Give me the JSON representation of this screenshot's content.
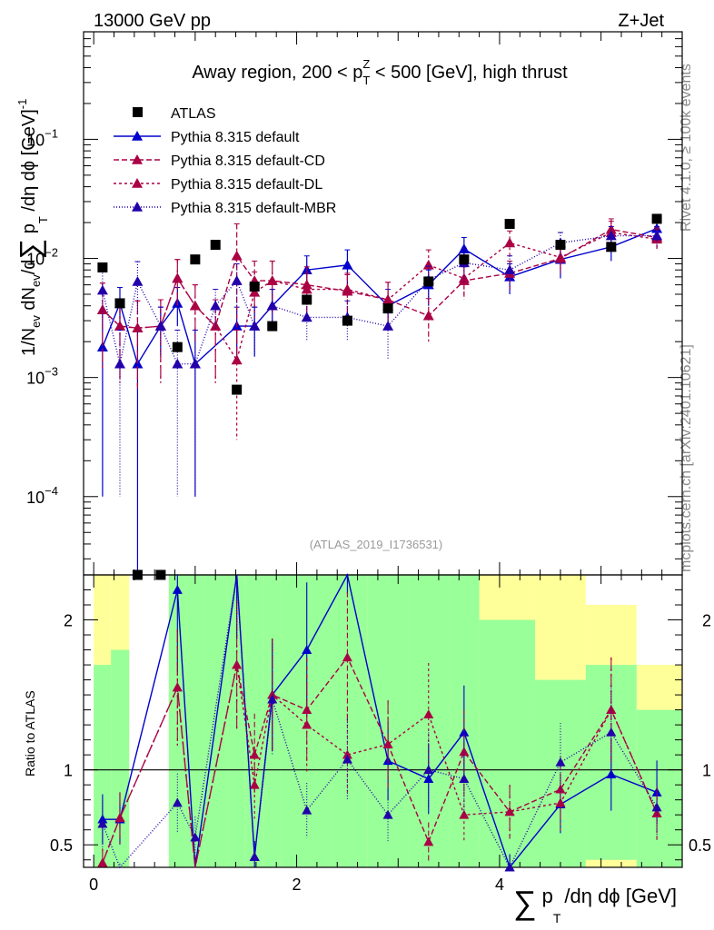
{
  "header": {
    "left": "13000 GeV pp",
    "right": "Z+Jet"
  },
  "side_labels": {
    "rivet": "Rivet 4.1.0, ≥ 100k events",
    "mcplots": "mcplots.cern.ch [arXiv:2401.10621]"
  },
  "chart_data": {
    "type": "scatter",
    "title": "Away region, 200 < p_T^Z < 500 [GeV], high thrust",
    "title_parts": {
      "pre": "Away region, 200 < p",
      "sub": "T",
      "sup": "Z",
      "post": " < 500 [GeV], high thrust"
    },
    "xlabel": "∑ p_T/dη dϕ [GeV]",
    "xlabel_parts": {
      "sum": "∑",
      "p": "p",
      "sub": "T",
      "rest": "/dη dϕ [GeV]"
    },
    "ylabel": "1/N_ev dN_ev/d∑ p_T/dη dϕ [GeV]^-1",
    "ylabel_parts": {
      "a": "1/N",
      "a_sub": "ev",
      "b": " dN",
      "b_sub": "ev",
      "c": "/d",
      "sum": "∑",
      "d": " p",
      "d_sub": "T",
      "e": " /dη dϕ  [GeV]",
      "e_sup": "-1"
    },
    "ratio_ylabel": "Ratio to ATLAS",
    "watermark": "(ATLAS_2019_I1736531)",
    "xlim": [
      -0.1,
      5.8
    ],
    "ylim_main": [
      2.2e-05,
      0.8
    ],
    "ylim_ratio": [
      0.35,
      2.3
    ],
    "x_ticks": [
      0,
      2,
      4
    ],
    "y_ticks_main": [
      {
        "v": 0.1,
        "base": "10",
        "exp": "−1"
      },
      {
        "v": 0.01,
        "base": "10",
        "exp": "−2"
      },
      {
        "v": 0.001,
        "base": "10",
        "exp": "−3"
      },
      {
        "v": 0.0001,
        "base": "10",
        "exp": "−4"
      }
    ],
    "y_ticks_ratio": [
      {
        "v": 0.5,
        "label": "0.5"
      },
      {
        "v": 1,
        "label": "1"
      },
      {
        "v": 2,
        "label": "2"
      }
    ],
    "x": [
      0.087,
      0.258,
      0.432,
      0.66,
      0.825,
      1.0,
      1.2,
      1.41,
      1.585,
      1.76,
      2.1,
      2.5,
      2.9,
      3.3,
      3.65,
      4.1,
      4.6,
      5.1,
      5.55
    ],
    "atlas": {
      "name": "ATLAS",
      "values": [
        0.0084,
        0.0042,
        1.8e-05,
        1.8e-05,
        0.0018,
        0.0098,
        0.013,
        0.00079,
        0.0058,
        0.0027,
        0.0045,
        0.003,
        0.0038,
        0.0064,
        0.0098,
        0.0195,
        0.013,
        0.0125,
        0.0215
      ]
    },
    "series": [
      {
        "name": "Pythia 8.315 default",
        "color": "#0000cc",
        "dash": "",
        "values": [
          0.0018,
          0.0042,
          0.0013,
          0.0027,
          0.0042,
          0.0013,
          null,
          0.0027,
          0.0027,
          0.004,
          0.008,
          0.0088,
          0.004,
          0.006,
          0.012,
          0.007,
          0.0098,
          0.0125,
          0.0178
        ],
        "errors": [
          0.0017,
          0.0015,
          0.0013,
          0.0012,
          0.0015,
          0.0012,
          null,
          0.0012,
          0.0012,
          0.0015,
          0.0025,
          0.003,
          0.0015,
          0.002,
          0.003,
          0.002,
          0.003,
          0.003,
          0.003
        ]
      },
      {
        "name": "Pythia 8.315 default-CD",
        "color": "#aa0044",
        "dash": "6,3",
        "values": [
          0.0037,
          0.0027,
          0.0026,
          0.0027,
          0.0068,
          0.004,
          0.0027,
          0.0105,
          0.0065,
          0.0065,
          0.006,
          0.0053,
          0.0045,
          0.0033,
          0.0065,
          0.0075,
          0.01,
          0.0175,
          0.015
        ],
        "errors": [
          0.0025,
          0.0018,
          0.0018,
          0.0018,
          0.003,
          0.002,
          0.0018,
          0.009,
          0.003,
          0.003,
          0.0025,
          0.002,
          0.0018,
          0.0013,
          0.002,
          0.002,
          0.0025,
          0.004,
          0.003
        ]
      },
      {
        "name": "Pythia 8.315 default-DL",
        "color": "#aa0044",
        "dash": "3,3",
        "values": [
          0.0037,
          0.0027,
          0.0026,
          0.0027,
          0.0068,
          0.004,
          0.0027,
          0.0014,
          0.0052,
          0.0065,
          0.0055,
          0.0055,
          0.0045,
          0.0088,
          0.0068,
          0.0135,
          0.0102,
          0.0165,
          0.0145
        ],
        "errors": [
          0.0025,
          0.0018,
          0.0018,
          0.0018,
          0.003,
          0.002,
          0.0018,
          0.0011,
          0.0025,
          0.003,
          0.002,
          0.002,
          0.0018,
          0.003,
          0.002,
          0.0035,
          0.0025,
          0.004,
          0.003
        ]
      },
      {
        "name": "Pythia 8.315 default-MBR",
        "color": "#2200aa",
        "dash": "1,2",
        "values": [
          0.0054,
          0.0013,
          0.0064,
          0.0027,
          0.0013,
          0.0013,
          0.004,
          0.0065,
          0.0027,
          0.004,
          0.0032,
          0.0032,
          0.0027,
          0.0066,
          0.0092,
          0.008,
          0.0135,
          0.0155,
          0.0155
        ],
        "errors": [
          0.003,
          0.0012,
          0.003,
          0.0012,
          0.0012,
          0.0012,
          0.0015,
          0.0025,
          0.0012,
          0.0015,
          0.0012,
          0.0012,
          0.0013,
          0.002,
          0.003,
          0.0025,
          0.003,
          0.003,
          0.003
        ]
      }
    ],
    "ratio": {
      "default": [
        0.67,
        0.67,
        null,
        null,
        2.2,
        0.34,
        null,
        2.5,
        0.42,
        1.5,
        1.8,
        2.9,
        1.06,
        0.94,
        1.25,
        0.35,
        0.77,
        0.97,
        0.85
      ],
      "default-CD": [
        0.38,
        0.68,
        null,
        null,
        1.55,
        0.3,
        null,
        1.7,
        1.1,
        1.5,
        1.4,
        1.75,
        1.17,
        0.52,
        1.12,
        0.72,
        0.87,
        1.4,
        0.71
      ],
      "default-DL": [
        0.38,
        0.68,
        null,
        null,
        1.55,
        0.3,
        null,
        1.7,
        0.9,
        1.5,
        1.3,
        1.1,
        1.17,
        1.37,
        0.7,
        0.72,
        0.78,
        1.4,
        0.71
      ],
      "default-MBR": [
        0.64,
        0.3,
        null,
        null,
        0.78,
        0.55,
        null,
        2.5,
        0.42,
        1.47,
        0.73,
        1.07,
        0.7,
        1.0,
        0.94,
        0.35,
        1.05,
        1.25,
        0.75
      ]
    },
    "bands": {
      "edges": [
        0.0,
        0.17,
        0.35,
        0.52,
        0.74,
        0.91,
        1.09,
        1.32,
        1.5,
        1.67,
        1.85,
        2.35,
        2.7,
        3.1,
        3.5,
        3.8,
        4.35,
        4.85,
        5.35,
        5.8
      ],
      "green": [
        [
          0.35,
          1.7
        ],
        [
          0.35,
          1.8
        ],
        null,
        null,
        [
          0.35,
          2.3
        ],
        [
          0.35,
          2.3
        ],
        [
          0.35,
          2.3
        ],
        [
          0.35,
          2.3
        ],
        [
          0.35,
          2.3
        ],
        [
          0.35,
          2.3
        ],
        [
          0.35,
          2.3
        ],
        [
          0.35,
          2.3
        ],
        [
          0.35,
          2.3
        ],
        [
          0.35,
          2.3
        ],
        [
          0.35,
          2.3
        ],
        [
          0.35,
          2.0
        ],
        [
          0.35,
          1.6
        ],
        [
          0.4,
          1.7
        ],
        [
          0.35,
          1.4
        ],
        [
          0.35,
          1.4
        ]
      ],
      "yellow": [
        [
          0.35,
          2.3
        ],
        [
          0.35,
          2.3
        ],
        null,
        null,
        [
          0.35,
          2.3
        ],
        [
          0.35,
          2.3
        ],
        [
          0.35,
          2.3
        ],
        [
          0.35,
          2.3
        ],
        [
          0.35,
          2.3
        ],
        [
          0.35,
          2.3
        ],
        [
          0.35,
          2.3
        ],
        [
          0.35,
          2.3
        ],
        [
          0.35,
          2.3
        ],
        [
          0.35,
          2.3
        ],
        [
          0.35,
          2.3
        ],
        [
          0.35,
          2.3
        ],
        [
          0.35,
          2.3
        ],
        [
          0.35,
          2.1
        ],
        [
          0.35,
          1.7
        ],
        [
          0.35,
          1.7
        ]
      ]
    }
  }
}
